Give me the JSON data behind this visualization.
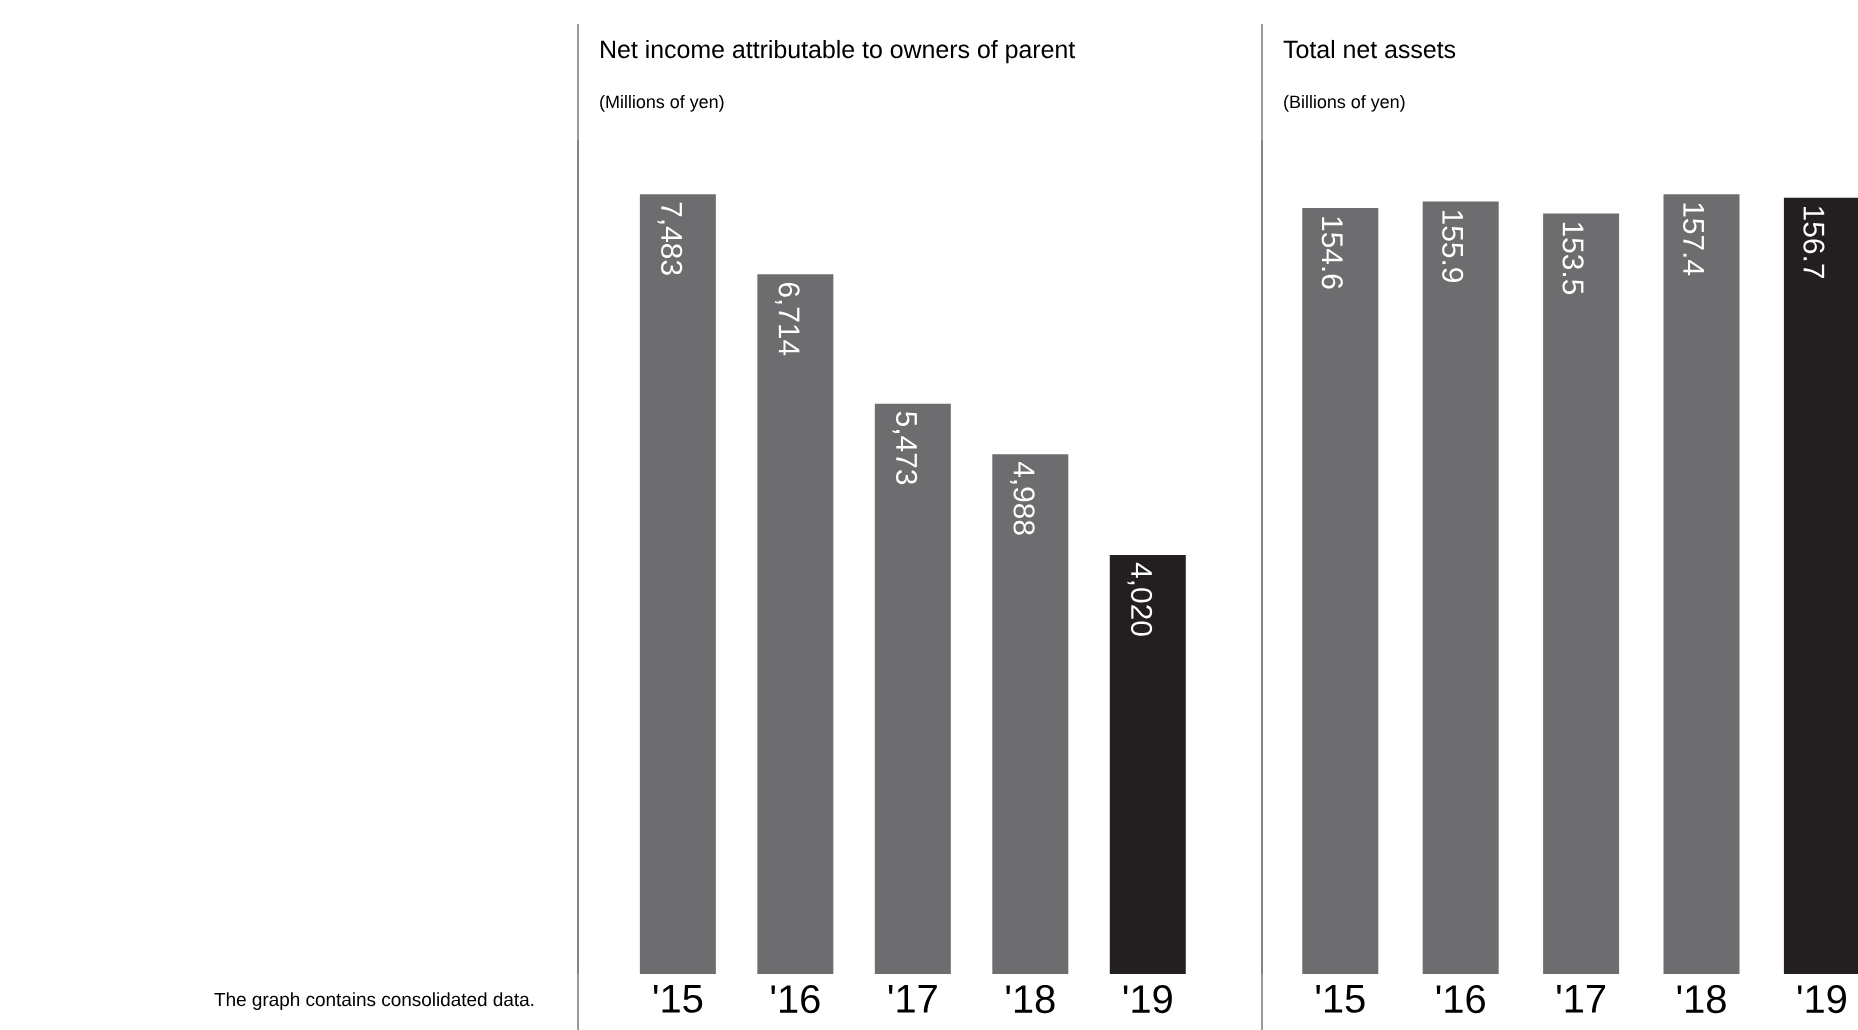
{
  "chart_data": [
    {
      "type": "bar",
      "title": "Net income attributable to owners of parent",
      "subtitle": "(Millions of yen)",
      "categories": [
        "'15",
        "'16",
        "'17",
        "'18",
        "'19"
      ],
      "values": [
        7483,
        6714,
        5473,
        4988,
        4020
      ],
      "value_labels": [
        "7,483",
        "6,714",
        "5,473",
        "4,988",
        "4,020"
      ],
      "colors": [
        "#6d6d70",
        "#6d6d70",
        "#6d6d70",
        "#6d6d70",
        "#231f20"
      ],
      "annotations": [
        "The graph contains consolidated data."
      ]
    },
    {
      "type": "bar",
      "title": "Total net assets",
      "subtitle": "(Billions of yen)",
      "categories": [
        "'15",
        "'16",
        "'17",
        "'18",
        "'19"
      ],
      "values": [
        154.6,
        155.9,
        153.5,
        157.4,
        156.7
      ],
      "value_labels": [
        "154.6",
        "155.9",
        "153.5",
        "157.4",
        "156.7"
      ],
      "colors": [
        "#6d6d70",
        "#6d6d70",
        "#6d6d70",
        "#6d6d70",
        "#231f20"
      ]
    }
  ]
}
